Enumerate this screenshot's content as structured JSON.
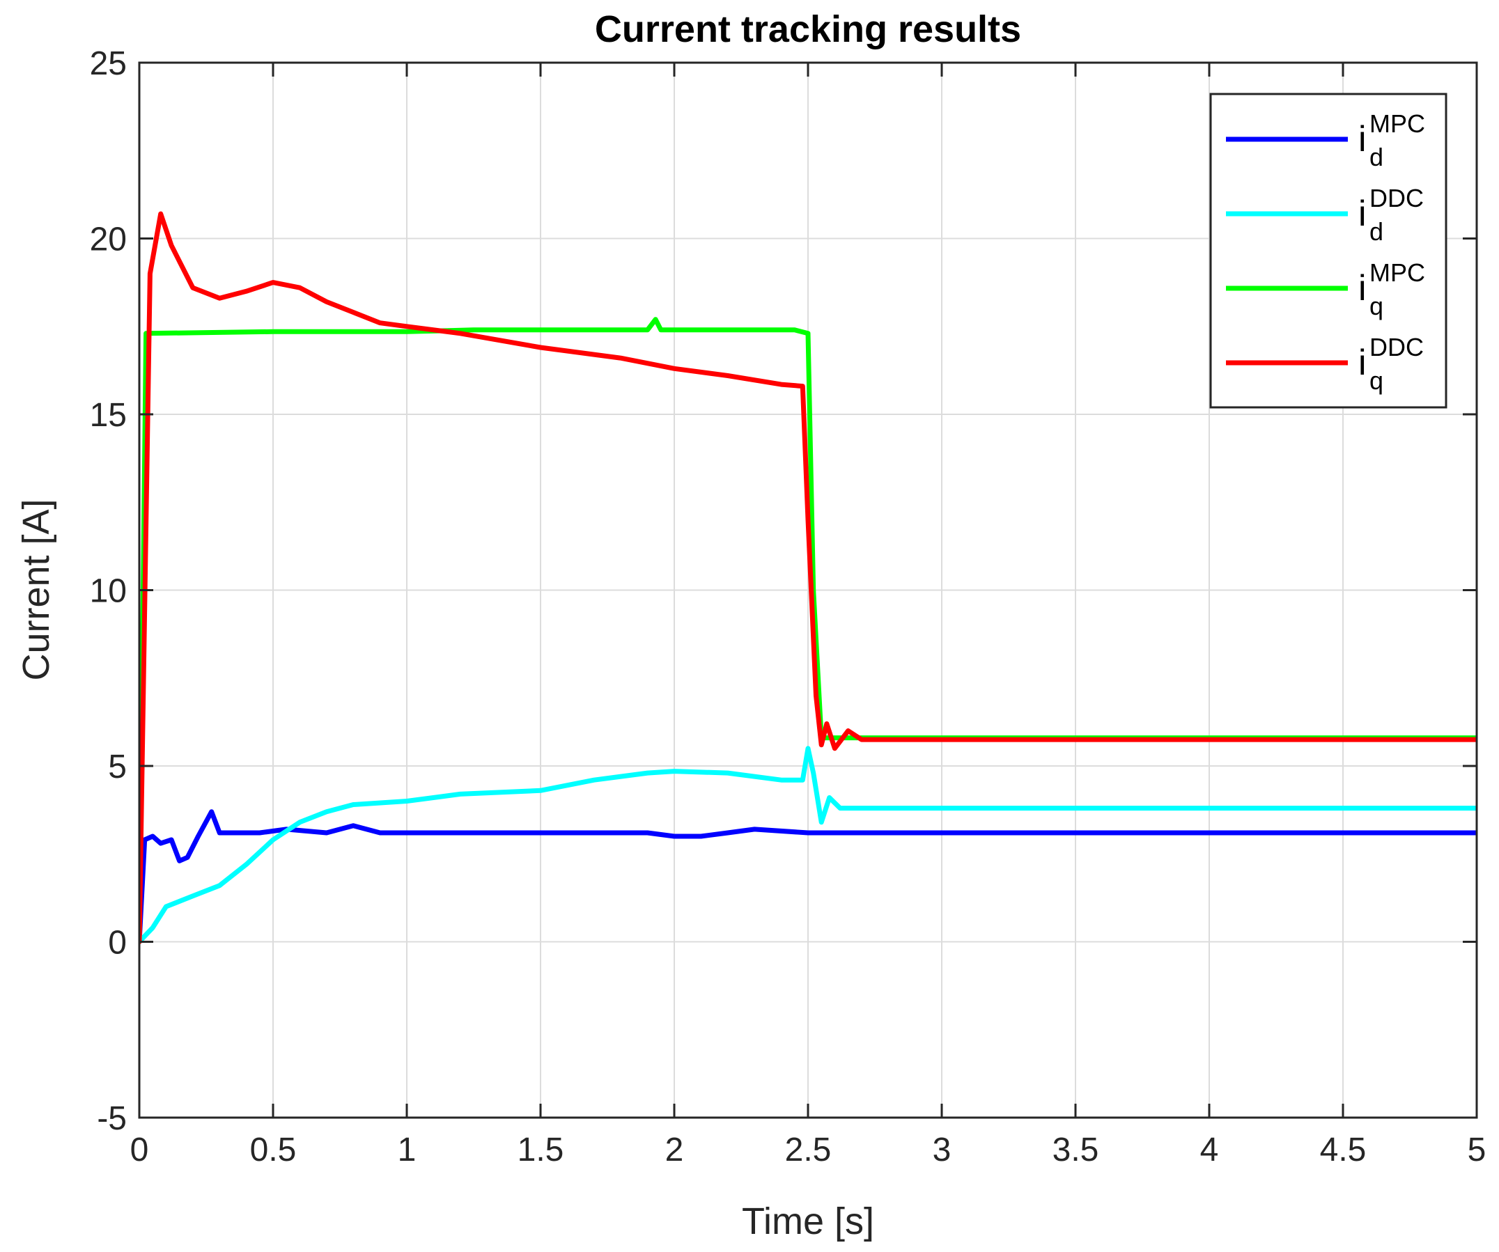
{
  "chart_data": {
    "type": "line",
    "title": "Current tracking results",
    "xlabel": "Time [s]",
    "ylabel": "Current [A]",
    "xlim": [
      0,
      5
    ],
    "ylim": [
      -5,
      25
    ],
    "x_ticks": [
      "0",
      "0.5",
      "1",
      "1.5",
      "2",
      "2.5",
      "3",
      "3.5",
      "4",
      "4.5",
      "5"
    ],
    "y_ticks": [
      "-5",
      "0",
      "5",
      "10",
      "15",
      "20",
      "25"
    ],
    "grid": true,
    "legend_position": "top-right",
    "series": [
      {
        "name": "i_d^MPC",
        "legend": {
          "main": "i",
          "sup": "MPC",
          "sub": "d"
        },
        "color": "#0000ff",
        "points": [
          [
            0,
            0
          ],
          [
            0.02,
            2.9
          ],
          [
            0.05,
            3.0
          ],
          [
            0.08,
            2.8
          ],
          [
            0.12,
            2.9
          ],
          [
            0.15,
            2.3
          ],
          [
            0.18,
            2.4
          ],
          [
            0.22,
            3.0
          ],
          [
            0.27,
            3.7
          ],
          [
            0.3,
            3.1
          ],
          [
            0.35,
            3.1
          ],
          [
            0.45,
            3.1
          ],
          [
            0.55,
            3.2
          ],
          [
            0.7,
            3.1
          ],
          [
            0.8,
            3.3
          ],
          [
            0.9,
            3.1
          ],
          [
            1.0,
            3.1
          ],
          [
            1.5,
            3.1
          ],
          [
            1.9,
            3.1
          ],
          [
            2.0,
            3.0
          ],
          [
            2.1,
            3.0
          ],
          [
            2.2,
            3.1
          ],
          [
            2.3,
            3.2
          ],
          [
            2.5,
            3.1
          ],
          [
            3.0,
            3.1
          ],
          [
            3.5,
            3.1
          ],
          [
            4.0,
            3.1
          ],
          [
            4.5,
            3.1
          ],
          [
            5.0,
            3.1
          ]
        ]
      },
      {
        "name": "i_d^DDC",
        "legend": {
          "main": "i",
          "sup": "DDC",
          "sub": "d"
        },
        "color": "#00ffff",
        "points": [
          [
            0,
            0
          ],
          [
            0.05,
            0.4
          ],
          [
            0.1,
            1.0
          ],
          [
            0.2,
            1.3
          ],
          [
            0.3,
            1.6
          ],
          [
            0.4,
            2.2
          ],
          [
            0.5,
            2.9
          ],
          [
            0.6,
            3.4
          ],
          [
            0.7,
            3.7
          ],
          [
            0.8,
            3.9
          ],
          [
            1.0,
            4.0
          ],
          [
            1.2,
            4.2
          ],
          [
            1.5,
            4.3
          ],
          [
            1.7,
            4.6
          ],
          [
            1.9,
            4.8
          ],
          [
            2.0,
            4.85
          ],
          [
            2.2,
            4.8
          ],
          [
            2.4,
            4.6
          ],
          [
            2.48,
            4.6
          ],
          [
            2.5,
            5.5
          ],
          [
            2.52,
            4.8
          ],
          [
            2.55,
            3.4
          ],
          [
            2.58,
            4.1
          ],
          [
            2.62,
            3.8
          ],
          [
            2.7,
            3.8
          ],
          [
            3.0,
            3.8
          ],
          [
            3.5,
            3.8
          ],
          [
            4.0,
            3.8
          ],
          [
            4.5,
            3.8
          ],
          [
            5.0,
            3.8
          ]
        ]
      },
      {
        "name": "i_q^MPC",
        "legend": {
          "main": "i",
          "sup": "MPC",
          "sub": "q"
        },
        "color": "#00ff00",
        "points": [
          [
            0,
            0
          ],
          [
            0.025,
            17.3
          ],
          [
            0.5,
            17.35
          ],
          [
            1.0,
            17.35
          ],
          [
            1.25,
            17.4
          ],
          [
            1.5,
            17.4
          ],
          [
            1.9,
            17.4
          ],
          [
            1.93,
            17.7
          ],
          [
            1.95,
            17.4
          ],
          [
            2.45,
            17.4
          ],
          [
            2.5,
            17.3
          ],
          [
            2.52,
            10.0
          ],
          [
            2.55,
            5.8
          ],
          [
            3.0,
            5.8
          ],
          [
            3.5,
            5.8
          ],
          [
            4.0,
            5.8
          ],
          [
            4.5,
            5.8
          ],
          [
            5.0,
            5.8
          ]
        ]
      },
      {
        "name": "i_q^DDC",
        "legend": {
          "main": "i",
          "sup": "DDC",
          "sub": "q"
        },
        "color": "#ff0000",
        "points": [
          [
            0,
            0
          ],
          [
            0.04,
            19.0
          ],
          [
            0.08,
            20.7
          ],
          [
            0.12,
            19.8
          ],
          [
            0.2,
            18.6
          ],
          [
            0.3,
            18.3
          ],
          [
            0.4,
            18.5
          ],
          [
            0.5,
            18.75
          ],
          [
            0.6,
            18.6
          ],
          [
            0.7,
            18.2
          ],
          [
            0.8,
            17.9
          ],
          [
            0.9,
            17.6
          ],
          [
            1.0,
            17.5
          ],
          [
            1.2,
            17.3
          ],
          [
            1.5,
            16.9
          ],
          [
            1.8,
            16.6
          ],
          [
            2.0,
            16.3
          ],
          [
            2.2,
            16.1
          ],
          [
            2.4,
            15.85
          ],
          [
            2.48,
            15.8
          ],
          [
            2.5,
            12.0
          ],
          [
            2.53,
            7.0
          ],
          [
            2.55,
            5.6
          ],
          [
            2.57,
            6.2
          ],
          [
            2.6,
            5.5
          ],
          [
            2.65,
            6.0
          ],
          [
            2.7,
            5.75
          ],
          [
            3.0,
            5.75
          ],
          [
            3.5,
            5.75
          ],
          [
            4.0,
            5.75
          ],
          [
            4.5,
            5.75
          ],
          [
            5.0,
            5.75
          ]
        ]
      }
    ]
  }
}
